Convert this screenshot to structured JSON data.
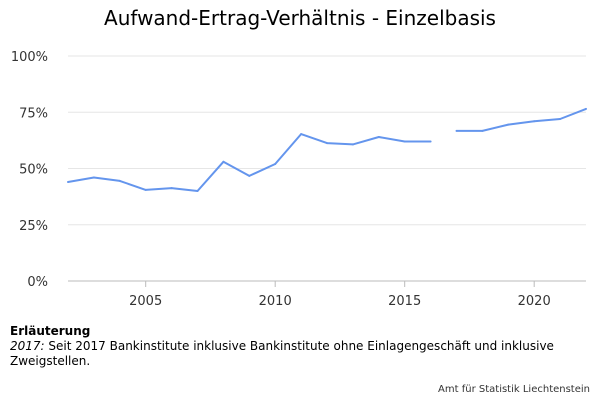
{
  "chart_data": {
    "type": "line",
    "title": "Aufwand-Ertrag-Verhältnis - Einzelbasis",
    "xlabel": "",
    "ylabel": "",
    "xlim": [
      2002,
      2022
    ],
    "ylim": [
      0,
      1
    ],
    "x_ticks": [
      2005,
      2010,
      2015,
      2020
    ],
    "y_ticks": [
      {
        "value": 0,
        "label": "0%"
      },
      {
        "value": 0.25,
        "label": "25%"
      },
      {
        "value": 0.5,
        "label": "50%"
      },
      {
        "value": 0.75,
        "label": "75%"
      },
      {
        "value": 1,
        "label": "100%"
      }
    ],
    "grid": true,
    "color": "#6495ED",
    "series": [
      {
        "segments": [
          {
            "x": [
              2002,
              2003,
              2004,
              2005,
              2006,
              2007,
              2008,
              2009,
              2010,
              2011,
              2012,
              2013,
              2014,
              2015,
              2016
            ],
            "y": [
              0.44,
              0.46,
              0.445,
              0.405,
              0.413,
              0.4,
              0.53,
              0.467,
              0.52,
              0.653,
              0.613,
              0.607,
              0.64,
              0.62,
              0.62
            ]
          },
          {
            "x": [
              2017,
              2018,
              2019,
              2020,
              2021,
              2022
            ],
            "y": [
              0.667,
              0.667,
              0.695,
              0.71,
              0.72,
              0.765
            ]
          }
        ]
      }
    ]
  },
  "note": {
    "title": "Erläuterung",
    "year": "2017:",
    "text": " Seit 2017 Bankinstitute inklusive Bankinstitute ohne Einlagengeschäft und inklusive Zweigstellen."
  },
  "credit": "Amt für Statistik Liechtenstein"
}
